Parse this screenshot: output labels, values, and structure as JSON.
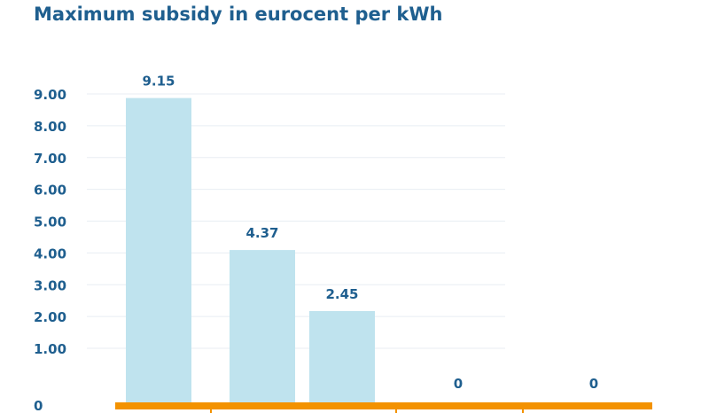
{
  "chart_data": {
    "type": "bar",
    "title": "Maximum subsidy in eurocent per kWh",
    "xlabel": "",
    "ylabel": "",
    "categories": [
      "",
      "",
      "",
      "",
      ""
    ],
    "values": [
      9.15,
      4.37,
      2.45,
      0,
      0
    ],
    "data_labels": [
      "9.15",
      "4.37",
      "2.45",
      "0",
      "0"
    ],
    "y_ticks": [
      1,
      2,
      3,
      4,
      5,
      6,
      7,
      8,
      9
    ],
    "y_tick_labels": [
      "1.00",
      "2.00",
      "3.00",
      "4.00",
      "5.00",
      "6.00",
      "7.00",
      "8.00",
      "9.00"
    ],
    "y_zero_label": "0",
    "ylim": [
      0,
      10
    ],
    "grid": true,
    "bar_color": "#bfe3ee",
    "axis_color": "#f39200",
    "text_color": "#1f5f8f",
    "grid_color": "#e8eef3"
  }
}
